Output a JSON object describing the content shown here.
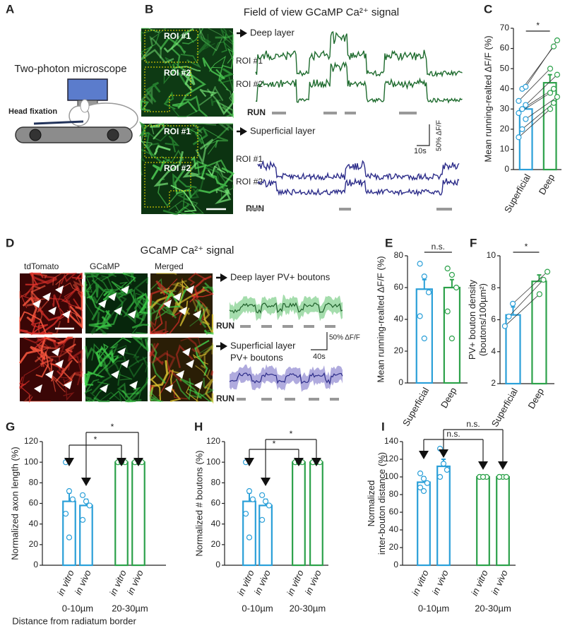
{
  "panels": {
    "A": {
      "label": "A",
      "title": "Two-photon microscope",
      "head": "Head fixation"
    },
    "B": {
      "label": "B",
      "title": "Field of view GCaMP Ca²⁺ signal",
      "deep": "Deep layer",
      "superficial": "Superficial layer",
      "roi1": "ROI #1",
      "roi2": "ROI #2",
      "run": "RUN",
      "time_scale": "10s",
      "amp_scale": "50% ΔF/F"
    },
    "D": {
      "label": "D",
      "title": "GCaMP Ca²⁺ signal",
      "col1": "tdTomato",
      "col2": "GCaMP",
      "col3": "Merged",
      "deep": "Deep layer PV+ boutons",
      "superficial": [
        "Superficial  layer",
        "PV+ boutons"
      ],
      "run": "RUN",
      "time_scale": "40s",
      "amp_scale": "50% ΔF/F"
    }
  },
  "chart_data": [
    {
      "type": "bar",
      "label": "C",
      "ylabel": [
        "Mean running-realted ΔF/F (%)"
      ],
      "categories": [
        "Superficial",
        "Deep"
      ],
      "values": [
        30,
        43
      ],
      "errors": [
        2,
        4
      ],
      "colors": [
        "#2a9fd8",
        "#2ca14a"
      ],
      "points": [
        [
          16,
          20,
          25,
          28,
          30,
          32,
          34,
          40,
          41
        ],
        [
          30,
          33,
          36,
          38,
          40,
          47,
          50,
          61,
          64
        ]
      ],
      "paired": true,
      "ylim": [
        0,
        70
      ],
      "yticks": [
        0,
        10,
        20,
        30,
        40,
        50,
        60,
        70
      ],
      "annotations": [
        "*"
      ]
    },
    {
      "type": "bar",
      "label": "E",
      "ylabel": [
        "Mean running-realted ΔF/F (%)"
      ],
      "categories": [
        "Superficial",
        "Deep"
      ],
      "values": [
        59,
        60
      ],
      "errors": [
        6,
        5
      ],
      "colors": [
        "#2a9fd8",
        "#2ca14a"
      ],
      "points": [
        [
          75,
          67,
          57,
          42,
          28
        ],
        [
          72,
          68,
          60,
          45,
          28
        ]
      ],
      "paired": false,
      "ylim": [
        0,
        80
      ],
      "yticks": [
        0,
        20,
        40,
        60,
        80
      ],
      "annotations": [
        "n.s."
      ]
    },
    {
      "type": "bar",
      "label": "F",
      "ylabel": [
        "PV+ bouton density",
        "(boutons/100µm²)"
      ],
      "categories": [
        "Superficial",
        "Deep"
      ],
      "values": [
        6.3,
        8.4
      ],
      "errors": [
        0.5,
        0.4
      ],
      "colors": [
        "#2a9fd8",
        "#2ca14a"
      ],
      "points": [
        [
          5.6,
          6.2,
          7.0
        ],
        [
          7.6,
          8.5,
          9.0
        ]
      ],
      "paired": true,
      "ylim": [
        2,
        10
      ],
      "yticks": [
        2,
        4,
        6,
        8,
        10
      ],
      "annotations": [
        "*"
      ]
    },
    {
      "type": "bar",
      "label": "G",
      "ylabel": [
        "Normalized  axon length (%)"
      ],
      "categories": [
        "in vitro",
        "in vivo",
        "in vitro",
        "in vivo"
      ],
      "groups": [
        "0-10µm",
        "20-30µm"
      ],
      "xlabel": "Distance from  radiatum border",
      "values": [
        62,
        58,
        100,
        100
      ],
      "errors": [
        8,
        6,
        1,
        1
      ],
      "colors": [
        "#2a9fd8",
        "#2a9fd8",
        "#2ca14a",
        "#2ca14a"
      ],
      "points": [
        [
          100,
          72,
          64,
          50,
          27
        ],
        [
          68,
          62,
          58,
          44
        ],
        [
          100,
          100,
          100,
          100,
          100
        ],
        [
          100,
          100,
          100,
          100
        ]
      ],
      "paired": false,
      "ylim": [
        0,
        120
      ],
      "yticks": [
        0,
        20,
        40,
        60,
        80,
        100,
        120
      ],
      "annotations": [
        "*",
        "*"
      ]
    },
    {
      "type": "bar",
      "label": "H",
      "ylabel": [
        "Normalized # boutons (%)"
      ],
      "categories": [
        "in vitro",
        "in vivo",
        "in vitro",
        "in vivo"
      ],
      "groups": [
        "0-10µm",
        "20-30µm"
      ],
      "values": [
        62,
        58,
        100,
        100
      ],
      "errors": [
        8,
        6,
        1,
        1
      ],
      "colors": [
        "#2a9fd8",
        "#2a9fd8",
        "#2ca14a",
        "#2ca14a"
      ],
      "points": [
        [
          100,
          72,
          64,
          50,
          27
        ],
        [
          68,
          62,
          58,
          44
        ],
        [
          100,
          100,
          100,
          100,
          100
        ],
        [
          100,
          100,
          100,
          100
        ]
      ],
      "paired": false,
      "ylim": [
        0,
        120
      ],
      "yticks": [
        0,
        20,
        40,
        60,
        80,
        100,
        120
      ],
      "annotations": [
        "*",
        "*"
      ]
    },
    {
      "type": "bar",
      "label": "I",
      "ylabel": [
        "Normalized",
        "inter-bouton distance (%)"
      ],
      "categories": [
        "in vitro",
        "in vivo",
        "in vitro",
        "in vivo"
      ],
      "groups": [
        "0-10µm",
        "20-30µm"
      ],
      "values": [
        94,
        112,
        100,
        100
      ],
      "errors": [
        6,
        8,
        1,
        1
      ],
      "colors": [
        "#2a9fd8",
        "#2a9fd8",
        "#2ca14a",
        "#2ca14a"
      ],
      "points": [
        [
          104,
          98,
          93,
          88,
          84
        ],
        [
          132,
          115,
          108,
          100
        ],
        [
          100,
          100,
          100,
          100,
          100
        ],
        [
          100,
          100,
          100,
          100
        ]
      ],
      "paired": false,
      "ylim": [
        0,
        140
      ],
      "yticks": [
        0,
        20,
        40,
        60,
        80,
        100,
        120,
        140
      ],
      "annotations": [
        "n.s.",
        "n.s."
      ]
    }
  ]
}
